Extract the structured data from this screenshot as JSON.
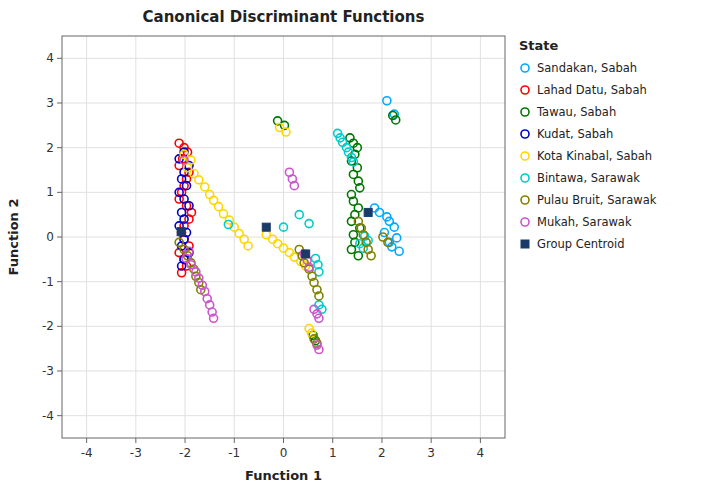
{
  "chart_data": {
    "type": "scatter",
    "title": "Canonical Discriminant Functions",
    "xlabel": "Function 1",
    "ylabel": "Function 2",
    "xlim": [
      -4.5,
      4.5
    ],
    "ylim": [
      -4.5,
      4.5
    ],
    "xticks": [
      -4,
      -3,
      -2,
      -1,
      0,
      1,
      2,
      3,
      4
    ],
    "yticks": [
      -4,
      -3,
      -2,
      -1,
      0,
      1,
      2,
      3,
      4
    ],
    "grid": true,
    "legend": "right",
    "legend_title": "State",
    "series": [
      {
        "name": "Sandakan, Sabah",
        "color": "#00AAFF",
        "marker": "circle",
        "x": [
          2.1,
          2.25,
          1.85,
          1.95,
          2.1,
          2.15,
          2.25,
          2.05,
          2.3,
          2.15,
          2.2,
          2.35
        ],
        "values": [
          3.05,
          2.75,
          0.65,
          0.55,
          0.45,
          0.35,
          0.22,
          0.1,
          -0.02,
          -0.12,
          -0.22,
          -0.32
        ]
      },
      {
        "name": "Lahad Datu, Sabah",
        "color": "#FF0000",
        "marker": "circle",
        "x": [
          -2.12,
          -2.02,
          -1.95,
          -2.05,
          -2.12,
          -1.92,
          -1.97,
          -2.02,
          -2.07,
          -2.12,
          -1.97,
          -1.87,
          -1.92,
          -2.02,
          -2.07,
          -2.02,
          -1.92,
          -2.12,
          -2.02,
          -1.97,
          -2.07
        ],
        "values": [
          2.1,
          2.0,
          1.9,
          1.75,
          1.6,
          1.45,
          1.3,
          1.15,
          1.0,
          0.85,
          0.7,
          0.55,
          0.4,
          0.25,
          0.1,
          -0.05,
          -0.2,
          -0.35,
          -0.5,
          -0.65,
          -0.8
        ]
      },
      {
        "name": "Tawau, Sabah",
        "color": "#007700",
        "marker": "circle",
        "x": [
          -0.12,
          0.02,
          2.22,
          2.28,
          1.35,
          1.42,
          1.5,
          1.45,
          1.38,
          1.5,
          1.42,
          1.52,
          1.55,
          1.38,
          1.42,
          1.52,
          1.45,
          1.38,
          1.55,
          1.42,
          1.45,
          1.38,
          1.52,
          0.6,
          0.65
        ],
        "values": [
          2.6,
          2.5,
          2.72,
          2.62,
          2.22,
          2.1,
          2.0,
          1.85,
          1.7,
          1.55,
          1.4,
          1.25,
          1.1,
          0.95,
          0.8,
          0.65,
          0.5,
          0.35,
          0.2,
          0.05,
          -0.12,
          -0.28,
          -0.42,
          -2.2,
          -2.32
        ]
      },
      {
        "name": "Kudat, Sabah",
        "color": "#0000CC",
        "marker": "circle",
        "x": [
          -2.02,
          -2.12,
          -1.92,
          -2.02,
          -2.07,
          -1.97,
          -2.12,
          -2.02,
          -1.92,
          -2.07,
          -2.02,
          -2.12,
          -1.97,
          -2.02,
          -2.07,
          -1.92,
          -2.02,
          -2.07
        ],
        "values": [
          1.9,
          1.75,
          1.6,
          1.45,
          1.3,
          1.15,
          1.0,
          0.85,
          0.7,
          0.55,
          0.4,
          0.25,
          0.1,
          -0.05,
          -0.2,
          -0.35,
          -0.5,
          -0.65
        ]
      },
      {
        "name": "Kota Kinabal, Sabah",
        "color": "#FFD700",
        "marker": "circle",
        "x": [
          -0.08,
          0.05,
          -2.02,
          -1.88,
          -1.95,
          -1.82,
          -1.72,
          -1.6,
          -1.5,
          -1.42,
          -1.32,
          -1.22,
          -1.1,
          -1.0,
          -0.9,
          -0.8,
          -0.72,
          -0.35,
          -0.22,
          -0.12,
          0.0,
          0.12,
          0.22,
          0.35,
          0.45,
          0.52,
          0.57
        ],
        "values": [
          2.45,
          2.35,
          1.85,
          1.72,
          1.55,
          1.42,
          1.28,
          1.12,
          0.95,
          0.82,
          0.68,
          0.52,
          0.38,
          0.22,
          0.08,
          -0.05,
          -0.2,
          0.05,
          -0.05,
          -0.15,
          -0.25,
          -0.35,
          -0.45,
          -0.55,
          -0.65,
          -2.05,
          -2.15
        ]
      },
      {
        "name": "Bintawa, Sarawak",
        "color": "#00CCCC",
        "marker": "circle",
        "x": [
          1.1,
          1.15,
          1.2,
          1.28,
          1.32,
          1.38,
          1.42,
          -1.12,
          0.0,
          0.32,
          0.52,
          0.65,
          0.7,
          0.72,
          0.72,
          0.78,
          1.55,
          1.62,
          1.65,
          1.72
        ],
        "values": [
          2.32,
          2.22,
          2.12,
          2.0,
          1.9,
          1.78,
          1.68,
          0.28,
          0.22,
          0.5,
          0.3,
          -0.48,
          -0.62,
          -0.78,
          -1.52,
          -1.62,
          -0.15,
          -0.25,
          0.02,
          -0.08
        ]
      },
      {
        "name": "Pulau Bruit, Sarawak",
        "color": "#808000",
        "marker": "circle",
        "x": [
          -2.12,
          -2.02,
          -1.95,
          -1.88,
          -1.82,
          -1.78,
          -1.72,
          -1.68,
          0.32,
          0.38,
          0.42,
          0.52,
          0.58,
          0.62,
          0.68,
          0.72,
          1.52,
          1.58,
          1.62,
          1.68,
          1.72,
          1.78,
          2.02,
          2.12,
          0.62,
          0.68
        ],
        "values": [
          -0.12,
          -0.28,
          -0.42,
          -0.58,
          -0.72,
          -0.88,
          -1.02,
          -1.18,
          -0.28,
          -0.42,
          -0.58,
          -0.72,
          -0.88,
          -1.02,
          -1.18,
          -1.32,
          0.35,
          0.2,
          0.05,
          -0.12,
          -0.28,
          -0.42,
          0.0,
          -0.12,
          -2.28,
          -2.38
        ]
      },
      {
        "name": "Mukah, Sarawak",
        "color": "#CC55CC",
        "marker": "circle",
        "x": [
          -2.02,
          -1.92,
          -1.98,
          -1.88,
          -1.78,
          -1.72,
          -1.65,
          -1.6,
          -1.55,
          -1.5,
          -1.45,
          -1.42,
          0.12,
          0.18,
          0.22,
          0.42,
          0.48,
          0.52,
          0.62,
          0.68,
          0.72,
          0.68,
          0.72
        ],
        "values": [
          1.72,
          -0.32,
          -0.48,
          -0.62,
          -0.78,
          -0.92,
          -1.08,
          -1.22,
          -1.38,
          -1.52,
          -1.68,
          -1.82,
          1.45,
          1.3,
          1.15,
          -0.38,
          -0.52,
          -0.68,
          -1.62,
          -1.72,
          -1.82,
          -2.42,
          -2.52
        ]
      },
      {
        "name": "Group Centroid",
        "color": "#1A3A6A",
        "marker": "square",
        "x": [
          -2.08,
          -0.35,
          0.45,
          1.72
        ],
        "values": [
          0.12,
          0.22,
          -0.38,
          0.55
        ]
      }
    ]
  }
}
